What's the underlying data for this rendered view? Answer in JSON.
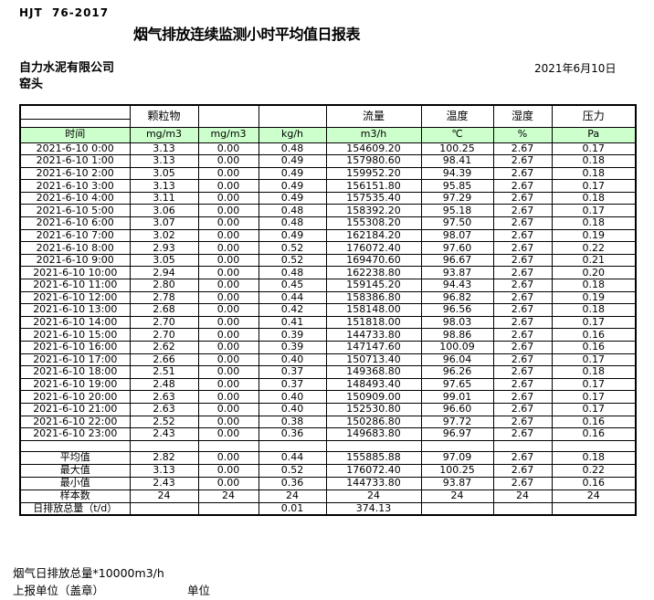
{
  "page": {
    "doc_code": "HJT  76-2017",
    "title": "烟气排放连续监测小时平均值日报表",
    "company": "自力水泥有限公司",
    "location": "窑头",
    "date": "2021年6月10日"
  },
  "colors": {
    "header_green": "#ccffcc"
  },
  "table": {
    "group_headers": [
      "",
      "颗粒物",
      "",
      "",
      "流量",
      "温度",
      "湿度",
      "压力"
    ],
    "unit_row": [
      "时间",
      "mg/m3",
      "mg/m3",
      "kg/h",
      "m3/h",
      "℃",
      "%",
      "Pa"
    ],
    "rows": [
      [
        "2021-6-10 0:00",
        "3.13",
        "0.00",
        "0.48",
        "154609.20",
        "100.25",
        "2.67",
        "0.17"
      ],
      [
        "2021-6-10 1:00",
        "3.13",
        "0.00",
        "0.49",
        "157980.60",
        "98.41",
        "2.67",
        "0.18"
      ],
      [
        "2021-6-10 2:00",
        "3.05",
        "0.00",
        "0.49",
        "159952.20",
        "94.39",
        "2.67",
        "0.18"
      ],
      [
        "2021-6-10 3:00",
        "3.13",
        "0.00",
        "0.49",
        "156151.80",
        "95.85",
        "2.67",
        "0.17"
      ],
      [
        "2021-6-10 4:00",
        "3.11",
        "0.00",
        "0.49",
        "157535.40",
        "97.29",
        "2.67",
        "0.18"
      ],
      [
        "2021-6-10 5:00",
        "3.06",
        "0.00",
        "0.48",
        "158392.20",
        "95.18",
        "2.67",
        "0.17"
      ],
      [
        "2021-6-10 6:00",
        "3.07",
        "0.00",
        "0.48",
        "155308.20",
        "97.50",
        "2.67",
        "0.18"
      ],
      [
        "2021-6-10 7:00",
        "3.02",
        "0.00",
        "0.49",
        "162184.20",
        "98.07",
        "2.67",
        "0.19"
      ],
      [
        "2021-6-10 8:00",
        "2.93",
        "0.00",
        "0.52",
        "176072.40",
        "97.60",
        "2.67",
        "0.22"
      ],
      [
        "2021-6-10 9:00",
        "3.05",
        "0.00",
        "0.52",
        "169470.60",
        "96.67",
        "2.67",
        "0.21"
      ],
      [
        "2021-6-10 10:00",
        "2.94",
        "0.00",
        "0.48",
        "162238.80",
        "93.87",
        "2.67",
        "0.20"
      ],
      [
        "2021-6-10 11:00",
        "2.80",
        "0.00",
        "0.45",
        "159145.20",
        "94.43",
        "2.67",
        "0.18"
      ],
      [
        "2021-6-10 12:00",
        "2.78",
        "0.00",
        "0.44",
        "158386.80",
        "96.82",
        "2.67",
        "0.19"
      ],
      [
        "2021-6-10 13:00",
        "2.68",
        "0.00",
        "0.42",
        "158148.00",
        "96.56",
        "2.67",
        "0.18"
      ],
      [
        "2021-6-10 14:00",
        "2.70",
        "0.00",
        "0.41",
        "151818.00",
        "98.03",
        "2.67",
        "0.17"
      ],
      [
        "2021-6-10 15:00",
        "2.70",
        "0.00",
        "0.39",
        "144733.80",
        "98.86",
        "2.67",
        "0.16"
      ],
      [
        "2021-6-10 16:00",
        "2.62",
        "0.00",
        "0.39",
        "147147.60",
        "100.09",
        "2.67",
        "0.16"
      ],
      [
        "2021-6-10 17:00",
        "2.66",
        "0.00",
        "0.40",
        "150713.40",
        "96.04",
        "2.67",
        "0.17"
      ],
      [
        "2021-6-10 18:00",
        "2.51",
        "0.00",
        "0.37",
        "149368.80",
        "96.26",
        "2.67",
        "0.18"
      ],
      [
        "2021-6-10 19:00",
        "2.48",
        "0.00",
        "0.37",
        "148493.40",
        "97.65",
        "2.67",
        "0.17"
      ],
      [
        "2021-6-10 20:00",
        "2.63",
        "0.00",
        "0.40",
        "150909.00",
        "99.01",
        "2.67",
        "0.17"
      ],
      [
        "2021-6-10 21:00",
        "2.63",
        "0.00",
        "0.40",
        "152530.80",
        "96.60",
        "2.67",
        "0.17"
      ],
      [
        "2021-6-10 22:00",
        "2.52",
        "0.00",
        "0.38",
        "150286.80",
        "97.72",
        "2.67",
        "0.16"
      ],
      [
        "2021-6-10 23:00",
        "2.43",
        "0.00",
        "0.36",
        "149683.80",
        "96.97",
        "2.67",
        "0.16"
      ]
    ],
    "summary": [
      [
        "平均值",
        "2.82",
        "0.00",
        "0.44",
        "155885.88",
        "97.09",
        "2.67",
        "0.18"
      ],
      [
        "最大值",
        "3.13",
        "0.00",
        "0.52",
        "176072.40",
        "100.25",
        "2.67",
        "0.22"
      ],
      [
        "最小值",
        "2.43",
        "0.00",
        "0.36",
        "144733.80",
        "93.87",
        "2.67",
        "0.16"
      ],
      [
        "样本数",
        "24",
        "24",
        "24",
        "24",
        "24",
        "24",
        "24"
      ],
      [
        "日排放总量（t/d）",
        "",
        "",
        "0.01",
        "374.13",
        "",
        "",
        ""
      ]
    ]
  },
  "footer": {
    "note": "烟气日排放总量*10000m3/h",
    "report_unit_label": "上报单位（盖章）",
    "unit_label": "单位"
  }
}
